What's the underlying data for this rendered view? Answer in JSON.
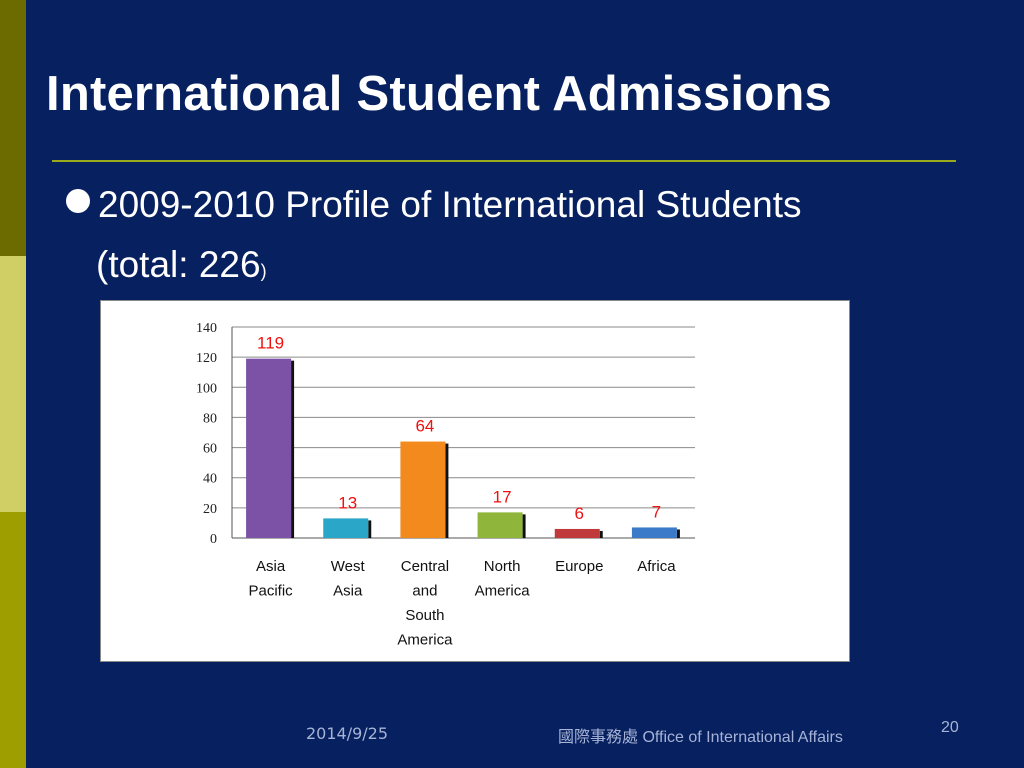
{
  "slide": {
    "title": "International Student Admissions",
    "bullet": "2009-2010 Profile of International Students",
    "subline_main": "(total: 226",
    "subline_close": ")",
    "footer_date": "2014/9/25",
    "footer_org": "國際事務處  Office of International Affairs",
    "page_number": "20"
  },
  "colors": {
    "background": "#07205f",
    "label_red": "#ee1111"
  },
  "chart_data": {
    "type": "bar",
    "categories": [
      [
        "Asia",
        "Pacific"
      ],
      [
        "West",
        "Asia"
      ],
      [
        "Central",
        "and",
        "South",
        "America"
      ],
      [
        "North",
        "America"
      ],
      [
        "Europe"
      ],
      [
        "Africa"
      ]
    ],
    "values": [
      119,
      13,
      64,
      17,
      6,
      7
    ],
    "data_labels": [
      "119",
      "13",
      "64",
      "17",
      "6",
      "7"
    ],
    "bar_colors": [
      "#7b52a6",
      "#2aa6c8",
      "#f28a1e",
      "#8fb63b",
      "#c0393b",
      "#3b7ac8"
    ],
    "yticks": [
      "0",
      "20",
      "40",
      "60",
      "80",
      "100",
      "120",
      "140"
    ],
    "ylim": [
      0,
      140
    ],
    "grid": true
  }
}
